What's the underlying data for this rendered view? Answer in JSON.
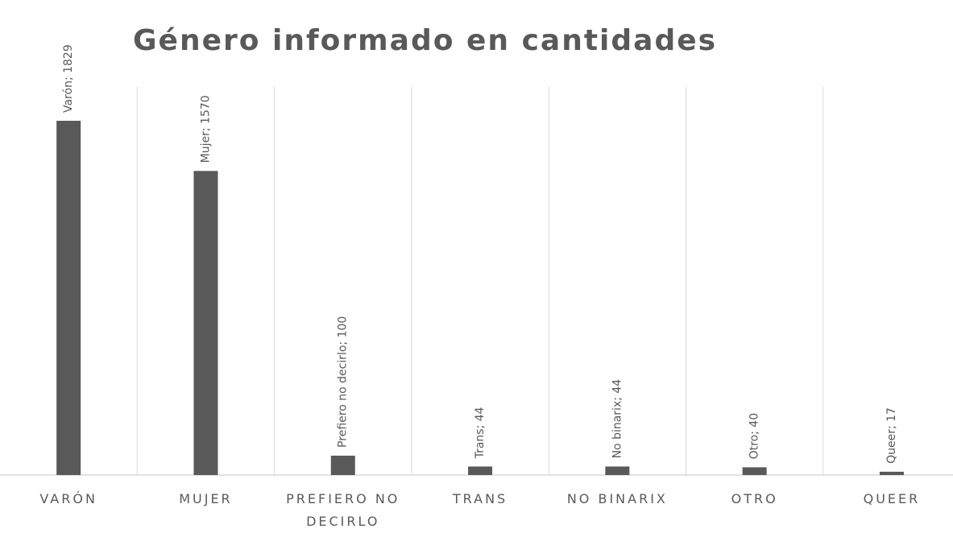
{
  "chart_data": {
    "type": "bar",
    "title": "Género informado en cantidades",
    "categories": [
      "VARÓN",
      "MUJER",
      "PREFIERO NO DECIRLO",
      "TRANS",
      "NO BINARIX",
      "OTRO",
      "QUEER"
    ],
    "values": [
      1829,
      1570,
      100,
      44,
      44,
      40,
      17
    ],
    "value_labels": [
      "Varón; 1829",
      "Mujer; 1570",
      "Prefiero no decirlo; 100",
      "Trans; 44",
      "No binarix; 44",
      "Otro; 40",
      "Queer; 17"
    ],
    "color": "#595959",
    "grid": true
  }
}
